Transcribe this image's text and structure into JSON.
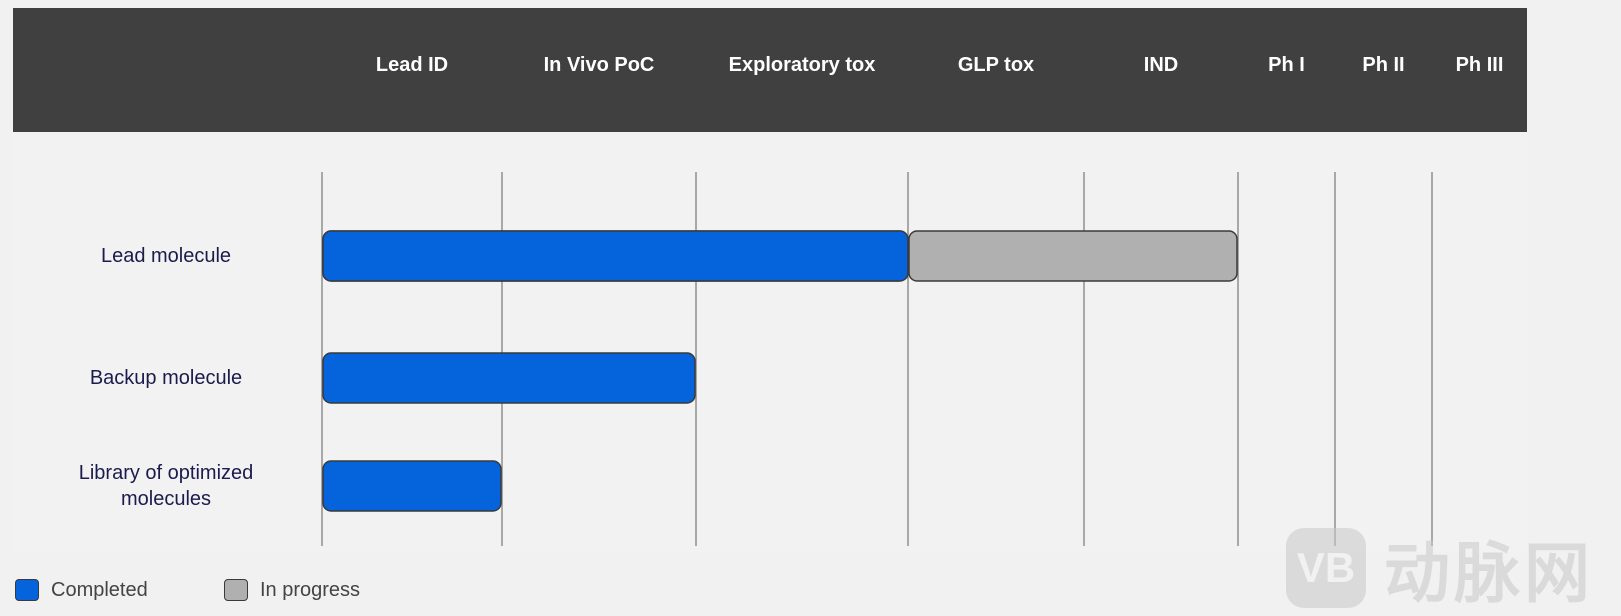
{
  "chart_data": {
    "type": "bar",
    "orientation": "horizontal",
    "stacked": true,
    "phases": [
      "Lead ID",
      "In Vivo PoC",
      "Exploratory tox",
      "GLP tox",
      "IND",
      "Ph I",
      "Ph II",
      "Ph III"
    ],
    "categories": [
      "Lead molecule",
      "Backup molecule",
      "Library of optimized\nmolecules"
    ],
    "series": [
      {
        "name": "Completed",
        "color": "#0563db",
        "values": [
          3,
          2,
          1
        ]
      },
      {
        "name": "In progress",
        "color": "#b0b0b0",
        "values": [
          2,
          0,
          0
        ]
      }
    ],
    "xlim": [
      0,
      8
    ],
    "grid": true,
    "legend_position": "bottom-left"
  },
  "colors": {
    "header_bg": "#404040",
    "stage_bg": "#f2f2f2",
    "gridline": "#909090",
    "label_text": "#1b1b4d"
  },
  "watermark": {
    "icon": "vb-logo-icon",
    "text": "动脉网"
  }
}
